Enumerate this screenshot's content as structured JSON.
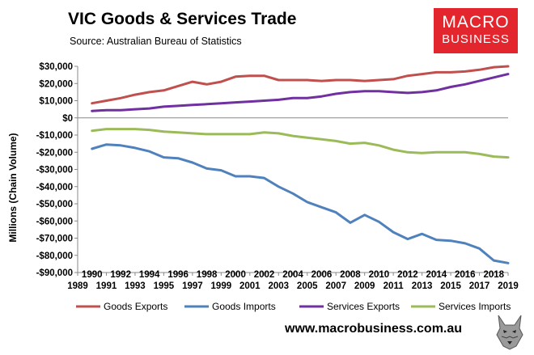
{
  "header": {
    "title": "VIC Goods & Services Trade",
    "source": "Source:  Australian Bureau of Statistics"
  },
  "logo": {
    "line1": "MACRO",
    "line2": "BUSINESS",
    "color": "#e3262d"
  },
  "footer": {
    "url": "www.macrobusiness.com.au"
  },
  "chart_data": {
    "type": "line",
    "title": "VIC Goods & Services Trade",
    "xlabel": "",
    "ylabel": "Millions (Chain Volume)",
    "xlim": [
      1989,
      2019
    ],
    "ylim": [
      -90000,
      30000
    ],
    "grid": false,
    "legend_position": "bottom",
    "x_ticks": [
      "1989",
      "1991",
      "1993",
      "1995",
      "1997",
      "1999",
      "2001",
      "2003",
      "2005",
      "2007",
      "2009",
      "2011",
      "2013",
      "2015",
      "2017",
      "2019"
    ],
    "x_tick_labels_row2": [
      "1990",
      "1992",
      "1994",
      "1996",
      "1998",
      "2000",
      "2002",
      "2004",
      "2006",
      "2008",
      "2010",
      "2012",
      "2014",
      "2016",
      "2018"
    ],
    "y_ticks": [
      30000,
      20000,
      10000,
      0,
      -10000,
      -20000,
      -30000,
      -40000,
      -50000,
      -60000,
      -70000,
      -80000,
      -90000
    ],
    "y_tick_labels": [
      "$30,000",
      "$20,000",
      "$10,000",
      "$0",
      "-$10,000",
      "-$20,000",
      "-$30,000",
      "-$40,000",
      "-$50,000",
      "-$60,000",
      "-$70,000",
      "-$80,000",
      "-$90,000"
    ],
    "x": [
      1990,
      1991,
      1992,
      1993,
      1994,
      1995,
      1996,
      1997,
      1998,
      1999,
      2000,
      2001,
      2002,
      2003,
      2004,
      2005,
      2006,
      2007,
      2008,
      2009,
      2010,
      2011,
      2012,
      2013,
      2014,
      2015,
      2016,
      2017,
      2018,
      2019
    ],
    "series": [
      {
        "name": "Goods Exports",
        "color": "#c0504d",
        "values": [
          8500,
          10000,
          11500,
          13500,
          15000,
          16000,
          18500,
          21000,
          19500,
          21000,
          24000,
          24500,
          24500,
          22000,
          22000,
          22000,
          21500,
          22000,
          22000,
          21500,
          22000,
          22500,
          24500,
          25500,
          26500,
          26500,
          27000,
          28000,
          29500,
          30000
        ]
      },
      {
        "name": "Goods Imports",
        "color": "#4f81bd",
        "values": [
          -18000,
          -15500,
          -16000,
          -17500,
          -19500,
          -23000,
          -23500,
          -26000,
          -29500,
          -30500,
          -34000,
          -34000,
          -35000,
          -40000,
          -44000,
          -49000,
          -52000,
          -55000,
          -61000,
          -56500,
          -60500,
          -66500,
          -70500,
          -67500,
          -71000,
          -71500,
          -73000,
          -76000,
          -83000,
          -84500
        ]
      },
      {
        "name": "Services Exports",
        "color": "#7030a0",
        "values": [
          4000,
          4500,
          4500,
          5000,
          5500,
          6500,
          7000,
          7500,
          8000,
          8500,
          9000,
          9500,
          10000,
          10500,
          11500,
          11500,
          12500,
          14000,
          15000,
          15500,
          15500,
          15000,
          14500,
          15000,
          16000,
          18000,
          19500,
          21500,
          23500,
          25500
        ]
      },
      {
        "name": "Services Imports",
        "color": "#9bbb59",
        "values": [
          -7500,
          -6500,
          -6500,
          -6500,
          -7000,
          -8000,
          -8500,
          -9000,
          -9500,
          -9500,
          -9500,
          -9500,
          -8500,
          -9000,
          -10500,
          -11500,
          -12500,
          -13500,
          -15000,
          -14500,
          -16000,
          -18500,
          -20000,
          -20500,
          -20000,
          -20000,
          -20000,
          -21000,
          -22500,
          -23000
        ]
      }
    ]
  }
}
